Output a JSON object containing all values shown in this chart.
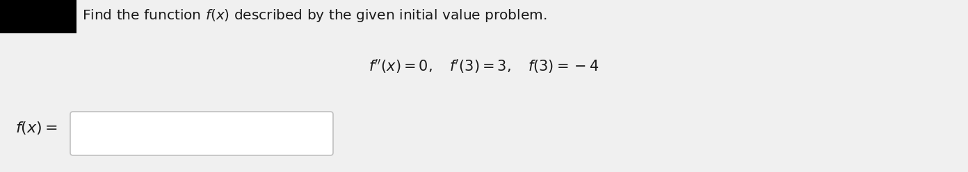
{
  "background_color": "#f0f0f0",
  "black_box_color": "#000000",
  "title_text": "Find the function $f(x)$ described by the given initial value problem.",
  "title_fontsize": 14.5,
  "title_color": "#1a1a1a",
  "equation_line1": "$f''(x) = 0, \\quad f'(3) = 3, \\quad f(3) = -4$",
  "equation_fontsize": 15,
  "equation_color": "#1a1a1a",
  "label_text": "$f(x) =$",
  "label_fontsize": 16,
  "label_color": "#1a1a1a",
  "box_facecolor": "#ffffff",
  "box_edgecolor": "#c0c0c0"
}
